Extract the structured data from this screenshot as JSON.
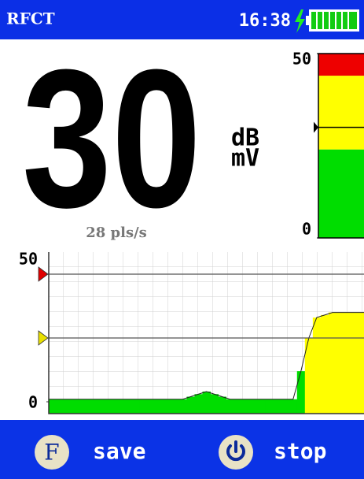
{
  "status_bar": {
    "title": "RFCT",
    "time": "16:38"
  },
  "reading": {
    "value": 30,
    "unit_top": "dB",
    "unit_bottom": "mV",
    "rate": "28 pls/s"
  },
  "gauge": {
    "ylim": [
      0,
      50
    ],
    "yticks": [
      0,
      50
    ],
    "zones": [
      {
        "from": 0,
        "to": 24,
        "color": "#00dd00"
      },
      {
        "from": 24,
        "to": 44,
        "color": "#ffff00"
      },
      {
        "from": 44,
        "to": 50,
        "color": "#ee0000"
      }
    ]
  },
  "trace": {
    "ylim": [
      0,
      50
    ],
    "yticks": [
      0,
      50
    ],
    "markers": [
      {
        "value": 50,
        "color": "#e00000"
      },
      {
        "value": 25,
        "color": "#e8e000"
      }
    ],
    "low_color": "#00dd00",
    "high_color": "#ffff00",
    "values": [
      1,
      1,
      1,
      1,
      1,
      1,
      1,
      1,
      1,
      1,
      1,
      1,
      1,
      1,
      1,
      1,
      1,
      1,
      2,
      3,
      4,
      3,
      2,
      1,
      1,
      1,
      1,
      1,
      1,
      1,
      1,
      1,
      12,
      25,
      33,
      34,
      35,
      35,
      35,
      35,
      35
    ]
  },
  "buttons": [
    {
      "key": "F",
      "label": "save"
    },
    {
      "label": "stop"
    }
  ]
}
